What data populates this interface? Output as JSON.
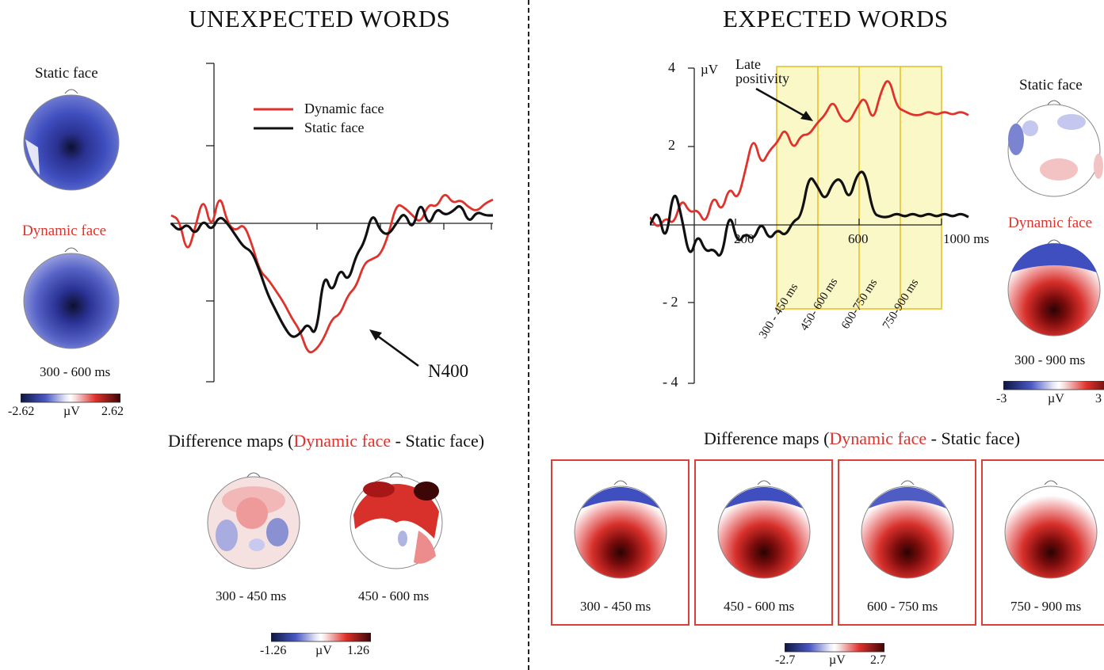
{
  "left": {
    "title": "UNEXPECTED WORDS",
    "static_label": "Static face",
    "dynamic_label": "Dynamic face",
    "window_label": "300 - 600 ms",
    "colorbar": {
      "min": "-2.62",
      "unit": "µV",
      "max": "2.62"
    },
    "legend": {
      "dynamic": "Dynamic face",
      "static": "Static face"
    },
    "annotation": "N400",
    "diff_title": {
      "prefix": "Difference maps (",
      "dynamic": "Dynamic face",
      "rest": " - Static face)"
    },
    "diff_maps": [
      {
        "label": "300 - 450 ms"
      },
      {
        "label": "450 - 600 ms"
      }
    ],
    "diff_colorbar": {
      "min": "-1.26",
      "unit": "µV",
      "max": "1.26"
    }
  },
  "right": {
    "title": "EXPECTED WORDS",
    "static_label": "Static face",
    "dynamic_label": "Dynamic face",
    "window_label": "300 - 900 ms",
    "colorbar": {
      "min": "-3",
      "unit": "µV",
      "max": "3"
    },
    "annotation_line1": "Late",
    "annotation_line2": "positivity",
    "axis": {
      "unit": "µV",
      "y_ticks": [
        "4",
        "2",
        "- 2",
        "- 4"
      ],
      "x_ticks": [
        "200",
        "600",
        "1000 ms"
      ]
    },
    "windows": [
      "300 - 450 ms",
      "450- 600 ms",
      "600-750 ms",
      "750-900 ms"
    ],
    "diff_title": {
      "prefix": "Difference maps (",
      "dynamic": "Dynamic face",
      "rest": " - Static face)"
    },
    "diff_maps": [
      {
        "label": "300 - 450 ms"
      },
      {
        "label": "450 - 600 ms"
      },
      {
        "label": "600 - 750 ms"
      },
      {
        "label": "750 - 900 ms"
      }
    ],
    "diff_colorbar": {
      "min": "-2.7",
      "unit": "µV",
      "max": "2.7"
    }
  },
  "chart_data": [
    {
      "type": "line",
      "panel": "UNEXPECTED WORDS",
      "x": [
        0,
        25,
        50,
        75,
        100,
        125,
        150,
        175,
        200,
        225,
        250,
        275,
        300,
        325,
        350,
        375,
        400,
        425,
        450,
        475,
        500,
        525,
        550,
        575,
        600,
        625,
        650,
        675,
        700,
        725,
        750,
        775,
        800,
        825,
        850,
        875,
        900,
        925,
        950,
        975,
        1000
      ],
      "series": [
        {
          "name": "Dynamic face",
          "color": "#e0312b",
          "values": [
            0.2,
            0.1,
            -0.8,
            -0.1,
            0.7,
            -0.2,
            0.8,
            0.0,
            -0.2,
            0.0,
            -0.5,
            -1.2,
            -1.4,
            -1.7,
            -2.0,
            -2.4,
            -2.7,
            -3.3,
            -3.2,
            -2.9,
            -2.4,
            -2.3,
            -1.8,
            -1.6,
            -1.0,
            -0.9,
            -0.8,
            -0.3,
            0.5,
            0.4,
            0.2,
            0.0,
            0.5,
            0.4,
            0.8,
            0.5,
            0.6,
            0.4,
            0.3,
            0.5,
            0.6
          ]
        },
        {
          "name": "Static face",
          "color": "#111111",
          "values": [
            0.0,
            -0.2,
            0.0,
            -0.3,
            0.1,
            -0.2,
            0.2,
            0.0,
            -0.3,
            -0.6,
            -0.7,
            -1.2,
            -1.8,
            -2.2,
            -2.6,
            -2.9,
            -2.8,
            -2.5,
            -2.9,
            -1.2,
            -1.8,
            -1.1,
            -1.5,
            -0.8,
            -0.5,
            0.3,
            -0.2,
            -0.3,
            0.0,
            0.3,
            -0.2,
            0.6,
            -0.1,
            0.4,
            0.2,
            0.3,
            0.5,
            0.0,
            0.3,
            0.2,
            0.2
          ]
        }
      ],
      "annotations": [
        "N400"
      ]
    },
    {
      "type": "line",
      "panel": "EXPECTED WORDS",
      "x": [
        0,
        25,
        50,
        75,
        100,
        125,
        150,
        175,
        200,
        225,
        250,
        275,
        300,
        325,
        350,
        375,
        400,
        425,
        450,
        475,
        500,
        525,
        550,
        575,
        600,
        625,
        650,
        675,
        700,
        725,
        750,
        775,
        800,
        825,
        850,
        875,
        900,
        925,
        950,
        975,
        1000
      ],
      "series": [
        {
          "name": "Dynamic face",
          "color": "#e0312b",
          "values": [
            0.2,
            -0.1,
            0.2,
            0.0,
            0.7,
            0.3,
            0.4,
            0.0,
            0.8,
            0.3,
            1.0,
            0.6,
            1.4,
            2.3,
            1.5,
            1.9,
            2.1,
            2.5,
            1.9,
            2.3,
            2.3,
            2.6,
            2.8,
            3.2,
            2.7,
            2.6,
            3.0,
            3.3,
            2.6,
            3.4,
            3.8,
            3.0,
            2.9,
            2.8,
            2.8,
            2.9,
            2.8,
            2.9,
            2.8,
            2.9,
            2.8
          ]
        },
        {
          "name": "Static face",
          "color": "#111111",
          "values": [
            0.0,
            0.4,
            -0.5,
            1.0,
            0.2,
            -0.9,
            -0.2,
            -0.7,
            -0.6,
            -0.9,
            0.4,
            -0.5,
            -0.2,
            -0.4,
            0.1,
            -0.4,
            -0.1,
            -0.3,
            0.1,
            0.2,
            1.3,
            1.0,
            0.6,
            1.1,
            1.2,
            0.6,
            1.3,
            1.4,
            0.3,
            0.2,
            0.2,
            0.3,
            0.2,
            0.3,
            0.2,
            0.3,
            0.2,
            0.3,
            0.2,
            0.3,
            0.2
          ]
        }
      ],
      "ylim": [
        -4,
        4
      ],
      "highlighted_windows": [
        "300 - 450 ms",
        "450- 600 ms",
        "600-750 ms",
        "750-900 ms"
      ],
      "annotations": [
        "Late positivity"
      ]
    }
  ]
}
